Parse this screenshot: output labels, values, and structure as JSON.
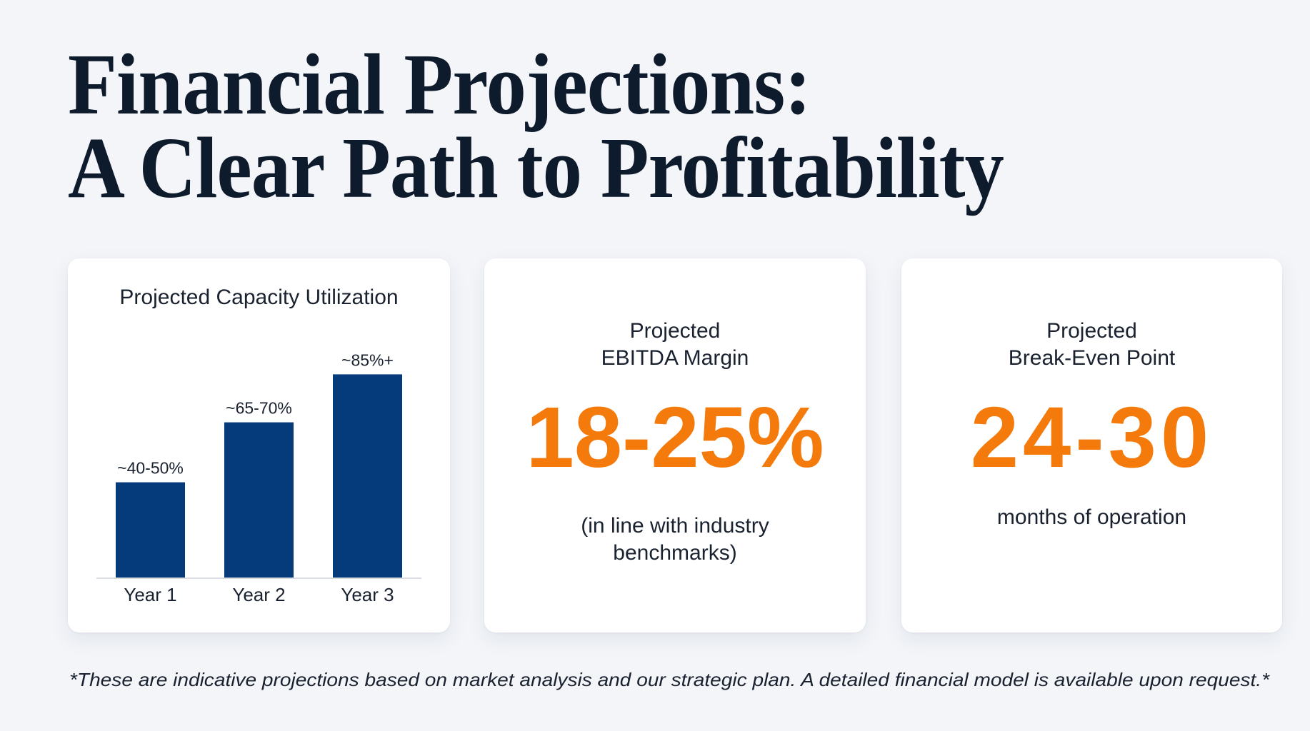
{
  "slide": {
    "title_line_1": "Financial Projections:",
    "title_line_2": "A Clear Path to Profitability",
    "footnote": "*These are indicative projections based on market analysis and our strategic plan. A detailed financial model is available upon request.*"
  },
  "colors": {
    "background": "#f3f5f9",
    "title": "#0e1b2c",
    "bar": "#063b7b",
    "accent_orange": "#f47a0c",
    "axis": "#d9dde3"
  },
  "metrics": [
    {
      "label_line_1": "Projected",
      "label_line_2": "EBITDA Margin",
      "value": "18-25%",
      "note_line_1": "(in line with industry",
      "note_line_2": "benchmarks)"
    },
    {
      "label_line_1": "Projected",
      "label_line_2": "Break-Even Point",
      "value": "24-30",
      "note_line_1": "months of operation"
    }
  ],
  "chart_data": {
    "type": "bar",
    "title": "Projected Capacity Utilization",
    "categories": [
      "Year 1",
      "Year 2",
      "Year 3"
    ],
    "values": [
      40,
      65,
      85
    ],
    "value_labels": [
      "~40-50%",
      "~65-70%",
      "~85%+"
    ],
    "xlabel": "",
    "ylabel": "",
    "ylim": [
      0,
      100
    ],
    "grid": false,
    "legend": "none"
  }
}
